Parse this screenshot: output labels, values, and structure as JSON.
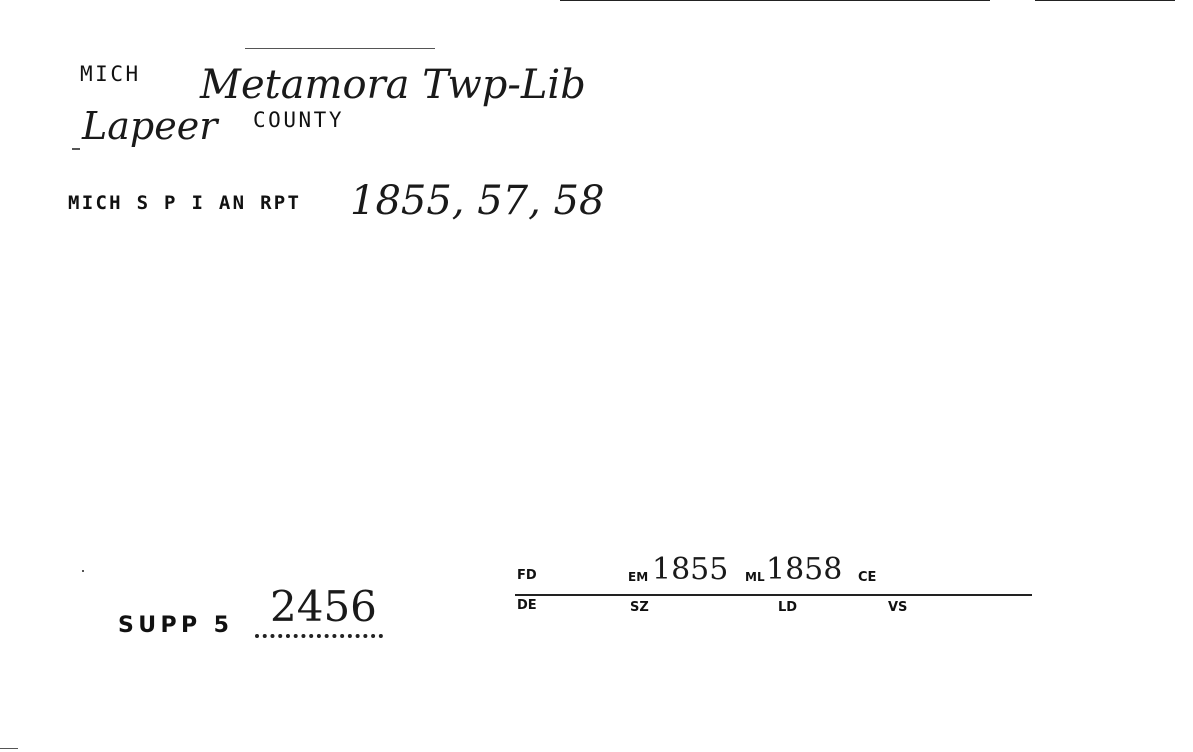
{
  "card": {
    "state_label": "MICH",
    "locality_handwritten": "Metamora Twp-Lib",
    "county_handwritten": "Lapeer",
    "county_label": "COUNTY",
    "report_label": "MICH S P I AN RPT",
    "report_years_handwritten": "1855, 57, 58",
    "supp_label": "SUPP 5",
    "supp_number_handwritten": "2456",
    "fields": {
      "fd_label": "FD",
      "em_label": "EM",
      "em_value": "1855",
      "ml_label": "ML",
      "ml_value": "1858",
      "ce_label": "CE",
      "de_label": "DE",
      "sz_label": "SZ",
      "ld_label": "LD",
      "vs_label": "VS"
    }
  }
}
